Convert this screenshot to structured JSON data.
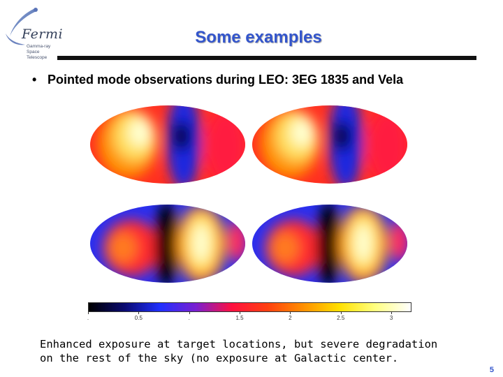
{
  "logo": {
    "wordmark": "Fermi",
    "subtitle_line1": "Gamma-ray",
    "subtitle_line2": "Space Telescope"
  },
  "slide": {
    "title": "Some examples",
    "bullet": "Pointed mode observations during LEO: 3EG 1835 and Vela",
    "caption": "Enhanced exposure at target locations, but severe degradation on the rest of the sky (no exposure at Galactic center.",
    "page_number": "5"
  },
  "colorbar": {
    "ticks": [
      {
        "label": ".",
        "value": 0
      },
      {
        "label": "0.5",
        "value": 0.5
      },
      {
        "label": ".",
        "value": 1.0
      },
      {
        "label": "1.5",
        "value": 1.5
      },
      {
        "label": "2",
        "value": 2.0
      },
      {
        "label": "2.5",
        "value": 2.5
      },
      {
        "label": "3",
        "value": 3.0
      }
    ],
    "colors": [
      "#000000",
      "#0a0a70",
      "#2030ff",
      "#7a1fd0",
      "#ff1040",
      "#ff4010",
      "#ff9000",
      "#ffe000",
      "#ffff80",
      "#ffffff"
    ]
  },
  "maps": [
    {
      "id": "top-left",
      "pattern": "bright-left"
    },
    {
      "id": "top-right",
      "pattern": "bright-left"
    },
    {
      "id": "bottom-left",
      "pattern": "bright-right"
    },
    {
      "id": "bottom-right",
      "pattern": "bright-right"
    }
  ]
}
